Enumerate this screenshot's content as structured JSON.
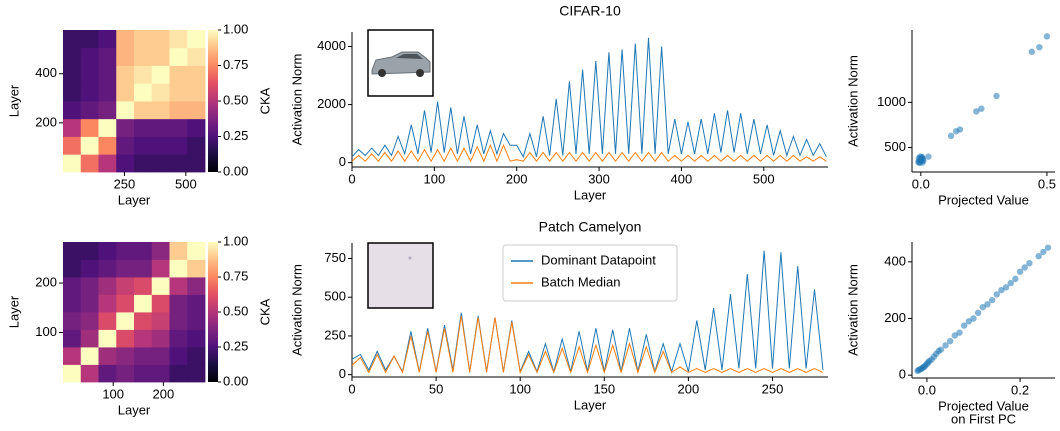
{
  "chart_data": [
    {
      "type": "heatmap",
      "colormap": "magma",
      "z": [
        [
          1,
          0.7,
          0.5,
          0.25,
          0.2,
          0.2,
          0.2,
          0.2
        ],
        [
          0.7,
          1,
          0.75,
          0.3,
          0.25,
          0.25,
          0.25,
          0.2
        ],
        [
          0.5,
          0.75,
          1,
          0.35,
          0.3,
          0.3,
          0.3,
          0.25
        ],
        [
          0.25,
          0.3,
          0.35,
          1,
          0.9,
          0.9,
          0.85,
          0.85
        ],
        [
          0.2,
          0.25,
          0.3,
          0.9,
          1,
          0.95,
          0.9,
          0.9
        ],
        [
          0.2,
          0.25,
          0.3,
          0.9,
          0.95,
          1,
          0.9,
          0.9
        ],
        [
          0.2,
          0.25,
          0.3,
          0.85,
          0.9,
          0.9,
          1,
          0.95
        ],
        [
          0.2,
          0.2,
          0.25,
          0.85,
          0.9,
          0.9,
          0.95,
          1
        ]
      ],
      "xlim": [
        0,
        578
      ],
      "xticks": [
        250,
        500
      ],
      "ylim": [
        0,
        578
      ],
      "yticks": [
        200,
        400
      ],
      "xlabel": "Layer",
      "ylabel": "Layer",
      "colorbar": {
        "label": "CKA",
        "lim": [
          0,
          1
        ],
        "ticks": [
          {
            "value": 0,
            "label": "0.00"
          },
          {
            "value": 0.25,
            "label": "0.25"
          },
          {
            "value": 0.5,
            "label": "0.50"
          },
          {
            "value": 0.75,
            "label": "0.75"
          },
          {
            "value": 1,
            "label": "1.00"
          }
        ]
      }
    },
    {
      "type": "line",
      "title": "CIFAR-10",
      "x": [
        0,
        8,
        16,
        24,
        32,
        40,
        48,
        56,
        64,
        72,
        80,
        88,
        96,
        104,
        112,
        120,
        128,
        136,
        144,
        152,
        160,
        168,
        176,
        184,
        192,
        200,
        208,
        216,
        224,
        232,
        240,
        248,
        256,
        264,
        272,
        280,
        288,
        296,
        304,
        312,
        320,
        328,
        336,
        344,
        352,
        360,
        368,
        376,
        384,
        392,
        400,
        408,
        416,
        424,
        432,
        440,
        448,
        456,
        464,
        472,
        480,
        488,
        496,
        504,
        512,
        520,
        528,
        536,
        544,
        552,
        560,
        568,
        576
      ],
      "series": [
        {
          "color": "#1f77b4",
          "values": [
            200,
            450,
            250,
            500,
            250,
            600,
            250,
            900,
            300,
            1300,
            300,
            1800,
            350,
            2100,
            350,
            1900,
            300,
            1600,
            300,
            1300,
            300,
            1100,
            300,
            1000,
            600,
            600,
            200,
            1000,
            200,
            1600,
            250,
            2200,
            250,
            2800,
            300,
            3200,
            300,
            3500,
            300,
            3800,
            300,
            3900,
            300,
            4100,
            300,
            4300,
            300,
            4000,
            300,
            1500,
            300,
            1400,
            300,
            1500,
            300,
            1700,
            350,
            1800,
            350,
            1700,
            300,
            1500,
            300,
            1300,
            250,
            1100,
            250,
            900,
            250,
            800,
            250,
            650,
            200
          ]
        },
        {
          "color": "#ff7f0e",
          "values": [
            50,
            250,
            50,
            300,
            50,
            350,
            50,
            400,
            50,
            400,
            50,
            450,
            50,
            450,
            50,
            500,
            50,
            500,
            50,
            550,
            50,
            600,
            50,
            600,
            50,
            100,
            50,
            350,
            50,
            350,
            50,
            350,
            50,
            350,
            50,
            350,
            50,
            350,
            50,
            350,
            50,
            350,
            50,
            350,
            50,
            350,
            50,
            350,
            50,
            250,
            50,
            250,
            50,
            250,
            50,
            250,
            50,
            250,
            50,
            250,
            50,
            250,
            50,
            250,
            50,
            250,
            50,
            250,
            50,
            200,
            50,
            200,
            50
          ]
        }
      ],
      "xlim": [
        0,
        578
      ],
      "xticks": [
        0,
        100,
        200,
        300,
        400,
        500
      ],
      "ylim": [
        -150,
        4500
      ],
      "yticks": [
        0,
        2000,
        4000
      ],
      "xlabel": "Layer",
      "ylabel": "Activation Norm"
    },
    {
      "type": "scatter",
      "color": "#1f77b4",
      "x": [
        -0.01,
        -0.008,
        -0.005,
        -0.003,
        0,
        0.002,
        0.004,
        0.006,
        0.008,
        0.01,
        -0.006,
        0.001,
        0.003,
        -0.002,
        0.005,
        0.03,
        0.12,
        0.14,
        0.155,
        0.22,
        0.24,
        0.3,
        0.44,
        0.47,
        0.5
      ],
      "y": [
        340,
        380,
        330,
        400,
        360,
        350,
        390,
        335,
        370,
        355,
        345,
        365,
        385,
        375,
        395,
        400,
        630,
        680,
        700,
        900,
        930,
        1070,
        1560,
        1610,
        1730
      ],
      "xlim": [
        -0.035,
        0.532
      ],
      "xticks": [
        {
          "value": 0,
          "label": "0.0"
        },
        {
          "value": 0.5,
          "label": "0.5"
        }
      ],
      "ylim": [
        230,
        1800
      ],
      "yticks": [
        500,
        1000
      ],
      "xlabel": "Projected Value",
      "ylabel": "Activation Norm"
    },
    {
      "type": "heatmap",
      "colormap": "magma",
      "z": [
        [
          1,
          0.5,
          0.3,
          0.35,
          0.3,
          0.3,
          0.2,
          0.2
        ],
        [
          0.5,
          1,
          0.45,
          0.4,
          0.35,
          0.35,
          0.25,
          0.2
        ],
        [
          0.3,
          0.45,
          1,
          0.6,
          0.5,
          0.45,
          0.3,
          0.25
        ],
        [
          0.35,
          0.4,
          0.6,
          1,
          0.6,
          0.55,
          0.35,
          0.3
        ],
        [
          0.3,
          0.35,
          0.5,
          0.6,
          1,
          0.6,
          0.35,
          0.3
        ],
        [
          0.3,
          0.35,
          0.45,
          0.55,
          0.6,
          1,
          0.5,
          0.4
        ],
        [
          0.2,
          0.25,
          0.3,
          0.35,
          0.35,
          0.5,
          1,
          0.9
        ],
        [
          0.2,
          0.2,
          0.25,
          0.3,
          0.3,
          0.4,
          0.9,
          1
        ]
      ],
      "xlim": [
        0,
        283
      ],
      "xticks": [
        100,
        200
      ],
      "ylim": [
        0,
        283
      ],
      "yticks": [
        100,
        200
      ],
      "xlabel": "Layer",
      "ylabel": "Layer",
      "colorbar": {
        "label": "CKA",
        "lim": [
          0,
          1
        ],
        "ticks": [
          {
            "value": 0,
            "label": "0.00"
          },
          {
            "value": 0.25,
            "label": "0.25"
          },
          {
            "value": 0.5,
            "label": "0.50"
          },
          {
            "value": 0.75,
            "label": "0.75"
          },
          {
            "value": 1,
            "label": "1.00"
          }
        ]
      }
    },
    {
      "type": "line",
      "title": "Patch Camelyon",
      "legend": "upper center",
      "x": [
        0,
        5,
        10,
        15,
        20,
        25,
        30,
        35,
        40,
        45,
        50,
        55,
        60,
        65,
        70,
        75,
        80,
        85,
        90,
        95,
        100,
        105,
        110,
        115,
        120,
        125,
        130,
        135,
        140,
        145,
        150,
        155,
        160,
        165,
        170,
        175,
        180,
        185,
        190,
        195,
        200,
        205,
        210,
        215,
        220,
        225,
        230,
        235,
        240,
        245,
        250,
        255,
        260,
        265,
        270,
        275,
        280
      ],
      "series": [
        {
          "name": "Dominant Datapoint",
          "color": "#1f77b4",
          "values": [
            100,
            130,
            30,
            150,
            30,
            120,
            20,
            280,
            20,
            300,
            20,
            320,
            30,
            400,
            20,
            380,
            20,
            370,
            20,
            350,
            20,
            150,
            20,
            200,
            20,
            230,
            20,
            280,
            20,
            300,
            20,
            290,
            20,
            300,
            20,
            260,
            20,
            200,
            20,
            200,
            20,
            350,
            30,
            430,
            30,
            520,
            40,
            650,
            40,
            800,
            40,
            790,
            40,
            700,
            40,
            550,
            30
          ]
        },
        {
          "name": "Batch Median",
          "color": "#ff7f0e",
          "values": [
            60,
            110,
            15,
            130,
            15,
            120,
            15,
            250,
            15,
            280,
            15,
            300,
            15,
            380,
            15,
            370,
            15,
            370,
            15,
            340,
            15,
            130,
            15,
            150,
            15,
            170,
            15,
            180,
            15,
            190,
            15,
            190,
            15,
            200,
            15,
            180,
            15,
            150,
            15,
            50,
            15,
            40,
            15,
            40,
            15,
            40,
            15,
            40,
            15,
            40,
            15,
            40,
            15,
            40,
            15,
            40,
            15
          ]
        }
      ],
      "xlim": [
        0,
        283
      ],
      "xticks": [
        0,
        50,
        100,
        150,
        200,
        250
      ],
      "ylim": [
        -15,
        850
      ],
      "yticks": [
        0,
        250,
        500,
        750
      ],
      "xlabel": "Layer",
      "ylabel": "Activation Norm"
    },
    {
      "type": "scatter",
      "color": "#1f77b4",
      "x": [
        -0.02,
        -0.018,
        -0.015,
        -0.012,
        -0.01,
        -0.008,
        -0.005,
        -0.003,
        0,
        0.003,
        0.005,
        0.01,
        0.015,
        0.02,
        0.025,
        0.03,
        0.04,
        0.05,
        0.06,
        0.07,
        0.08,
        0.09,
        0.1,
        0.11,
        0.12,
        0.13,
        0.14,
        0.15,
        0.16,
        0.17,
        0.18,
        0.19,
        0.2,
        0.21,
        0.22,
        0.24,
        0.25,
        0.26
      ],
      "y": [
        15,
        18,
        20,
        22,
        25,
        28,
        30,
        35,
        40,
        45,
        50,
        55,
        65,
        75,
        85,
        90,
        105,
        120,
        140,
        150,
        175,
        190,
        200,
        220,
        240,
        250,
        265,
        285,
        300,
        310,
        325,
        340,
        365,
        380,
        395,
        420,
        435,
        450
      ],
      "xlim": [
        -0.032,
        0.275
      ],
      "xticks": [
        {
          "value": 0,
          "label": "0.0"
        },
        {
          "value": 0.2,
          "label": "0.2"
        }
      ],
      "ylim": [
        -10,
        470
      ],
      "yticks": [
        0,
        200,
        400
      ],
      "xlabel": [
        "Projected Value",
        "on First PC"
      ],
      "ylabel": "Activation Norm"
    }
  ]
}
